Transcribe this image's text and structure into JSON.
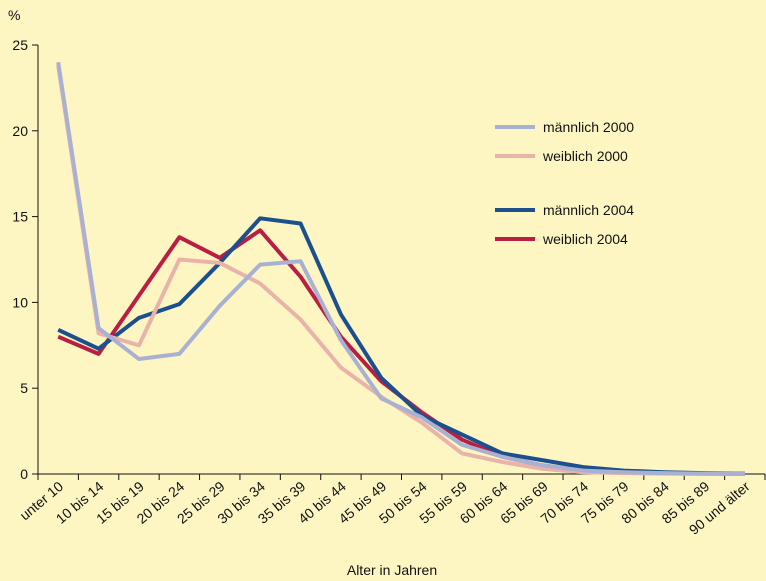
{
  "chart_data": {
    "type": "line",
    "y_label": "%",
    "x_label": "Alter in Jahren",
    "categories": [
      "unter 10",
      "10 bis 14",
      "15 bis 19",
      "20 bis 24",
      "25 bis 29",
      "30 bis 34",
      "35 bis 39",
      "40 bis 44",
      "45 bis 49",
      "50 bis 54",
      "55 bis 59",
      "60 bis 64",
      "65 bis 69",
      "70 bis 74",
      "75 bis 79",
      "80 bis 84",
      "85 bis 89",
      "90 und älter"
    ],
    "series": [
      {
        "name": "männlich 2000",
        "color": "#a9b1d2",
        "values": [
          24,
          8.5,
          6.7,
          7.0,
          9.8,
          12.2,
          12.4,
          7.8,
          4.4,
          3.3,
          1.7,
          1.0,
          0.5,
          0.2,
          0.1,
          0.05,
          0.02,
          0.01
        ]
      },
      {
        "name": "weiblich 2000",
        "color": "#e9b3aa",
        "values": [
          23.8,
          8.2,
          7.5,
          12.5,
          12.3,
          11.1,
          9.0,
          6.2,
          4.5,
          3.0,
          1.2,
          0.7,
          0.3,
          0.1,
          0.05,
          0.02,
          0.01,
          0.01
        ]
      },
      {
        "name": "männlich 2004",
        "color": "#1b4f8d",
        "values": [
          8.4,
          7.3,
          9.1,
          9.9,
          12.3,
          14.9,
          14.6,
          9.3,
          5.6,
          3.4,
          2.3,
          1.2,
          0.8,
          0.4,
          0.2,
          0.1,
          0.05,
          0.02
        ]
      },
      {
        "name": "weiblich 2004",
        "color": "#b81f42",
        "values": [
          8.0,
          7.0,
          10.4,
          13.8,
          12.6,
          14.2,
          11.5,
          8.0,
          5.4,
          3.6,
          2.0,
          1.0,
          0.5,
          0.2,
          0.1,
          0.05,
          0.02,
          0.01
        ]
      }
    ],
    "ylim": [
      0,
      25
    ],
    "yticks": [
      0,
      5,
      10,
      15,
      20,
      25
    ]
  }
}
